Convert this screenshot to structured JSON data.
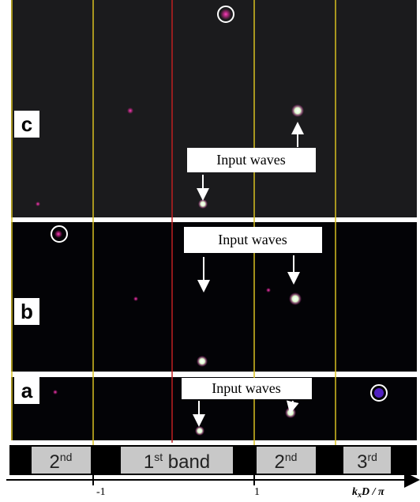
{
  "panels": [
    {
      "label": "c",
      "annotation": "Input waves"
    },
    {
      "label": "b",
      "annotation": "Input waves"
    },
    {
      "label": "a",
      "annotation": "Input waves"
    }
  ],
  "bands": [
    {
      "base": "2",
      "sup": "nd"
    },
    {
      "base": "1",
      "sup": "st",
      "rest": " band"
    },
    {
      "base": "2",
      "sup": "nd"
    },
    {
      "base": "3",
      "sup": "rd"
    }
  ],
  "axis": {
    "ticks": [
      "-1",
      "1"
    ],
    "label": {
      "main": "k",
      "sub": "x",
      "rest": "D / π"
    }
  }
}
